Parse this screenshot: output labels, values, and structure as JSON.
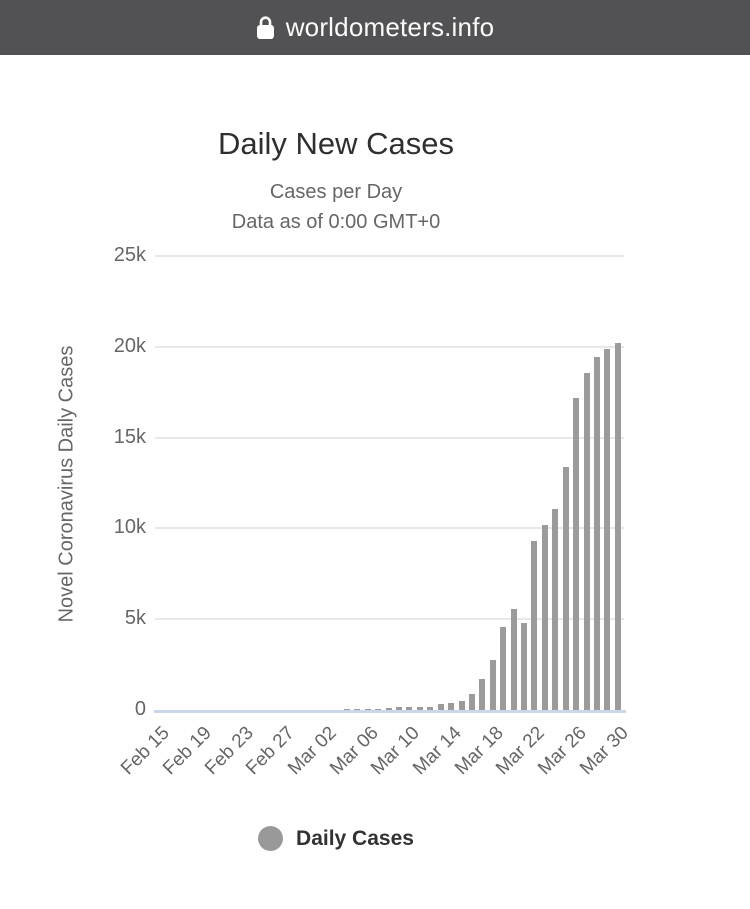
{
  "browser": {
    "url": "worldometers.info",
    "lock_icon": "lock-icon",
    "bar_color": "#525254",
    "text_color": "#fafafa"
  },
  "chart": {
    "title": "Daily New Cases",
    "subtitle_line1": "Cases per Day",
    "subtitle_line2": "Data as of 0:00 GMT+0",
    "y_axis_title": "Novel Coronavirus Daily Cases",
    "legend": {
      "label": "Daily Cases",
      "marker_color": "#999999"
    },
    "colors": {
      "bar": "#9b9b9b",
      "gridline": "#e8e8e8",
      "axis_line": "#ccd6eb",
      "title_text": "#2f2f2f",
      "subtitle_text": "#666666",
      "axis_text": "#666666"
    }
  },
  "chart_data": {
    "type": "bar",
    "title": "Daily New Cases",
    "subtitle": "Cases per Day — Data as of 0:00 GMT+0",
    "series_name": "Daily Cases",
    "xlabel": "",
    "ylabel": "Novel Coronavirus Daily Cases",
    "ylim": [
      0,
      25000
    ],
    "grid": true,
    "legend_position": "bottom",
    "y_axis_ticks": [
      {
        "label": "0",
        "value": 0
      },
      {
        "label": "5k",
        "value": 5000
      },
      {
        "label": "10k",
        "value": 10000
      },
      {
        "label": "15k",
        "value": 15000
      },
      {
        "label": "20k",
        "value": 20000
      },
      {
        "label": "25k",
        "value": 25000
      }
    ],
    "x_tick_interval": 4,
    "x_tick_labels": [
      "Feb 15",
      "Feb 19",
      "Feb 23",
      "Feb 27",
      "Mar 02",
      "Mar 06",
      "Mar 10",
      "Mar 14",
      "Mar 18",
      "Mar 22",
      "Mar 26",
      "Mar 30"
    ],
    "categories": [
      "Feb 15",
      "Feb 16",
      "Feb 17",
      "Feb 18",
      "Feb 19",
      "Feb 20",
      "Feb 21",
      "Feb 22",
      "Feb 23",
      "Feb 24",
      "Feb 25",
      "Feb 26",
      "Feb 27",
      "Feb 28",
      "Feb 29",
      "Mar 01",
      "Mar 02",
      "Mar 03",
      "Mar 04",
      "Mar 05",
      "Mar 06",
      "Mar 07",
      "Mar 08",
      "Mar 09",
      "Mar 10",
      "Mar 11",
      "Mar 12",
      "Mar 13",
      "Mar 14",
      "Mar 15",
      "Mar 16",
      "Mar 17",
      "Mar 18",
      "Mar 19",
      "Mar 20",
      "Mar 21",
      "Mar 22",
      "Mar 23",
      "Mar 24",
      "Mar 25",
      "Mar 26",
      "Mar 27",
      "Mar 28",
      "Mar 29",
      "Mar 30"
    ],
    "values": [
      0,
      0,
      2,
      0,
      0,
      1,
      19,
      0,
      0,
      18,
      4,
      6,
      2,
      3,
      8,
      6,
      23,
      20,
      31,
      70,
      47,
      65,
      105,
      150,
      165,
      185,
      185,
      310,
      370,
      480,
      880,
      1710,
      2760,
      4590,
      5570,
      4780,
      9330,
      10190,
      11080,
      13375,
      17180,
      18560,
      19440,
      19900,
      20220
    ]
  }
}
